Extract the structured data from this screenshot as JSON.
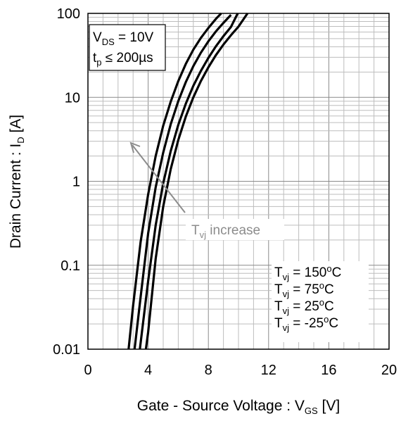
{
  "chart_data": {
    "type": "line",
    "x_axis": {
      "label_main": "Gate - Source Voltage : V",
      "label_sub": "GS",
      "label_suffix": " [V]",
      "range": [
        0,
        20
      ],
      "ticks": [
        0,
        4,
        8,
        12,
        16,
        20
      ],
      "tick_labels": [
        "0",
        "4",
        "8",
        "12",
        "16",
        "20"
      ],
      "minor_step": 1
    },
    "y_axis": {
      "label_main": "Drain Current : I",
      "label_sub": "D",
      "label_suffix": " [A]",
      "scale": "log",
      "range": [
        0.01,
        100
      ],
      "ticks": [
        0.01,
        0.1,
        1,
        10,
        100
      ],
      "tick_labels": [
        "0.01",
        "0.1",
        "1",
        "10",
        "100"
      ]
    },
    "grid": true,
    "conditions_box": {
      "vds_main": "V",
      "vds_sub": "DS",
      "vds_value": " = 10V",
      "tp_main": "t",
      "tp_sub": "p",
      "tp_value": " ≤ 200µs"
    },
    "arrow_annotation": {
      "main": "T",
      "sub": "vj",
      "suffix": " increase"
    },
    "series": [
      {
        "name": "Tvj = 150°C",
        "legend_value": " = 150",
        "x": [
          2.7,
          3.0,
          3.5,
          4.0,
          4.5,
          5.0,
          5.5,
          6.0,
          6.5,
          7.0,
          7.5,
          8.0,
          8.5,
          8.85
        ],
        "y": [
          0.01,
          0.033,
          0.19,
          0.7,
          2.0,
          4.6,
          8.9,
          15.6,
          25.0,
          37.0,
          51.0,
          67.0,
          86.0,
          100
        ]
      },
      {
        "name": "Tvj = 75°C",
        "legend_value": " =  75",
        "x": [
          3.1,
          3.5,
          4.0,
          4.5,
          5.0,
          5.5,
          6.0,
          6.5,
          7.0,
          7.5,
          8.0,
          8.5,
          9.0,
          9.5
        ],
        "y": [
          0.01,
          0.042,
          0.24,
          0.85,
          2.2,
          4.8,
          9.0,
          15.2,
          23.5,
          34.0,
          46.5,
          61.0,
          77.0,
          96.0
        ]
      },
      {
        "name": "Tvj = 25°C",
        "legend_value": " =  25",
        "x": [
          3.45,
          4.0,
          4.5,
          5.0,
          5.5,
          6.0,
          6.5,
          7.0,
          7.5,
          8.0,
          8.5,
          9.0,
          9.5,
          9.95
        ],
        "y": [
          0.01,
          0.065,
          0.3,
          0.95,
          2.3,
          4.7,
          8.4,
          13.7,
          20.6,
          29.5,
          40.5,
          53.5,
          69.0,
          100
        ]
      },
      {
        "name": "Tvj = -25°C",
        "legend_value": " = -25",
        "x": [
          3.85,
          4.0,
          4.5,
          5.0,
          5.5,
          6.0,
          6.5,
          7.0,
          7.5,
          8.0,
          8.5,
          9.0,
          9.5,
          10.0,
          10.6
        ],
        "y": [
          0.01,
          0.016,
          0.12,
          0.5,
          1.4,
          3.1,
          5.9,
          10.0,
          15.6,
          22.8,
          31.8,
          42.5,
          55.0,
          69.5,
          100
        ]
      }
    ],
    "legend_main": "T",
    "legend_sub": "vj",
    "legend_unit_sup": "o",
    "legend_unit": "C",
    "legend_position": "bottom-right"
  }
}
